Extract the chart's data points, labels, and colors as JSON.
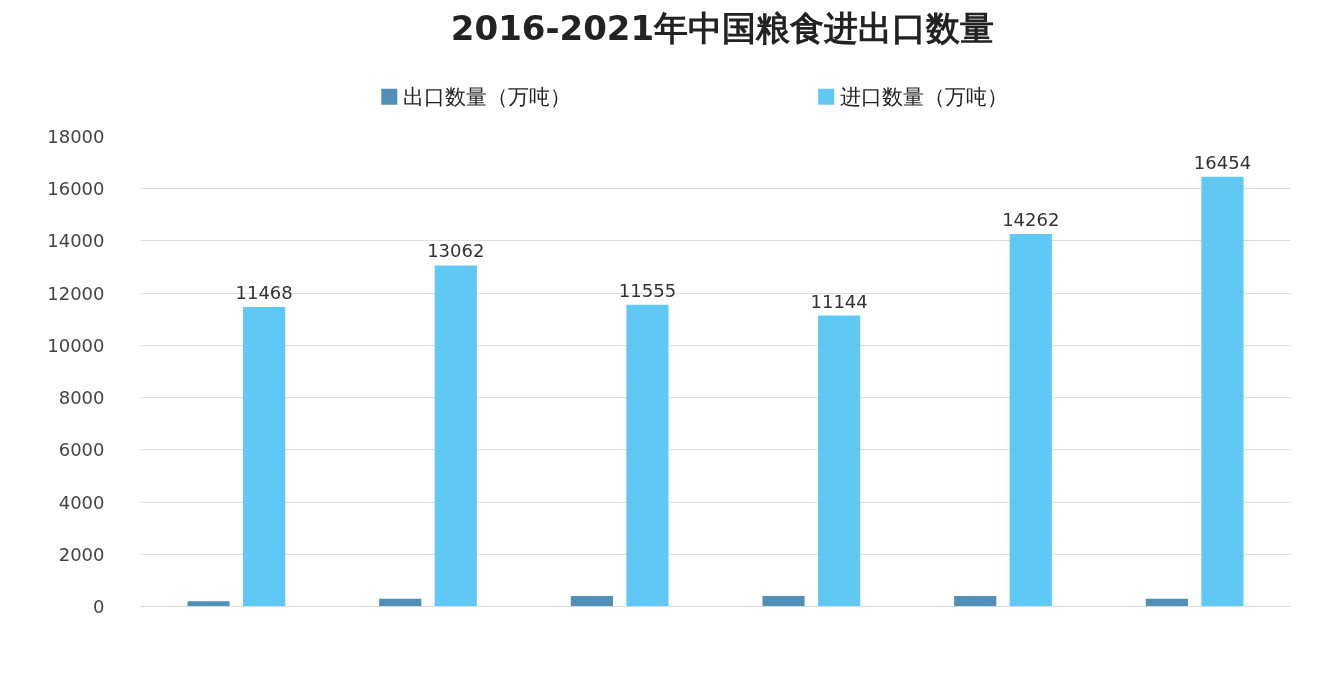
{
  "chart_data": {
    "type": "bar",
    "title": "2016-2021年中国粮食进出口数量",
    "categories": [
      null,
      null,
      null,
      null,
      null,
      null
    ],
    "series": [
      {
        "name": "出口数量（万吨）",
        "color": "#4f8fb8",
        "values": [
          200,
          300,
          400,
          400,
          400,
          300
        ]
      },
      {
        "name": "进口数量（万吨）",
        "color": "#5fc8f5",
        "values": [
          11468,
          13062,
          11555,
          11144,
          14262,
          16454
        ],
        "value_labels": [
          "11468",
          "13062",
          "11555",
          "11144",
          "14262",
          "16454"
        ]
      }
    ],
    "ylim": [
      0,
      18000
    ],
    "yticks": [
      0,
      2000,
      4000,
      6000,
      8000,
      10000,
      12000,
      14000,
      16000,
      18000
    ],
    "grid": "y",
    "legend": "top",
    "tick_labels": "y"
  }
}
